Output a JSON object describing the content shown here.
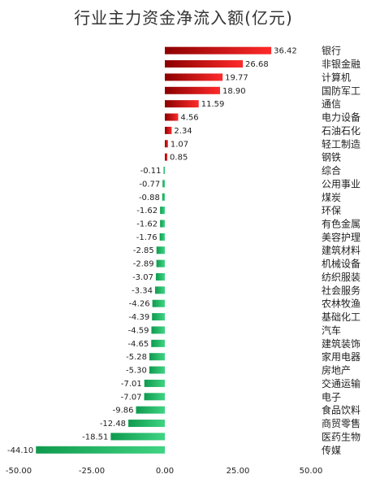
{
  "chart_data": {
    "type": "bar",
    "orientation": "horizontal",
    "title": "行业主力资金净流入额(亿元)",
    "categories": [
      "银行",
      "非银金融",
      "计算机",
      "国防军工",
      "通信",
      "电力设备",
      "石油石化",
      "轻工制造",
      "钢铁",
      "综合",
      "公用事业",
      "煤炭",
      "环保",
      "有色金属",
      "美容护理",
      "建筑材料",
      "机械设备",
      "纺织服装",
      "社会服务",
      "农林牧渔",
      "基础化工",
      "汽车",
      "建筑装饰",
      "家用电器",
      "房地产",
      "交通运输",
      "电子",
      "食品饮料",
      "商贸零售",
      "医药生物",
      "传媒"
    ],
    "values": [
      36.42,
      26.68,
      19.77,
      18.9,
      11.59,
      4.56,
      2.34,
      1.07,
      0.85,
      -0.11,
      -0.77,
      -0.88,
      -1.62,
      -1.62,
      -1.76,
      -2.85,
      -2.89,
      -3.07,
      -3.34,
      -4.26,
      -4.39,
      -4.59,
      -4.65,
      -5.28,
      -5.3,
      -7.01,
      -7.07,
      -9.86,
      -12.48,
      -18.51,
      -44.1
    ],
    "value_labels": [
      "36.42",
      "26.68",
      "19.77",
      "18.90",
      "11.59",
      "4.56",
      "2.34",
      "1.07",
      "0.85",
      "-0.11",
      "-0.77",
      "-0.88",
      "-1.62",
      "-1.62",
      "-1.76",
      "-2.85",
      "-2.89",
      "-3.07",
      "-3.34",
      "-4.26",
      "-4.39",
      "-4.59",
      "-4.65",
      "-5.28",
      "-5.30",
      "-7.01",
      "-7.07",
      "-9.86",
      "-12.48",
      "-18.51",
      "-44.10"
    ],
    "xlim": [
      -50,
      50
    ],
    "xticks": [
      "-50.00",
      "-25.00",
      "0.00",
      "25.00",
      "50.00"
    ],
    "xtick_values": [
      -50,
      -25,
      0,
      25,
      50
    ],
    "grid": false,
    "legend": "none",
    "colors": {
      "positive_dark": "#8b0000",
      "positive_light": "#ff2a2a",
      "negative_dark": "#0f9a4e",
      "negative_light": "#3fd483"
    }
  }
}
